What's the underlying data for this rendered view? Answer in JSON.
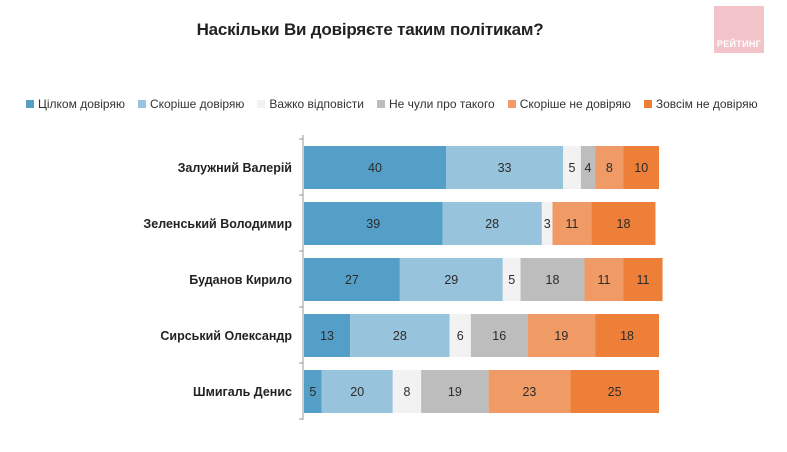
{
  "logo": {
    "text": "РЕЙТИНГ",
    "color": "#f2c3c8"
  },
  "chart_data": {
    "type": "bar",
    "orientation": "horizontal",
    "stacked": true,
    "title": "Наскільки Ви довіряєте таким політикам?",
    "xlabel": "",
    "ylabel": "",
    "xlim": [
      0,
      100
    ],
    "grid": false,
    "legend_position": "top",
    "categories": [
      "Залужний Валерій",
      "Зеленський Володимир",
      "Буданов Кирило",
      "Сирський Олександр",
      "Шмигаль Денис"
    ],
    "series": [
      {
        "name": "Цілком довіряю",
        "color": "#539fc7",
        "values": [
          40,
          39,
          27,
          13,
          5
        ]
      },
      {
        "name": "Скоріше довіряю",
        "color": "#97c3dc",
        "values": [
          33,
          28,
          29,
          28,
          20
        ]
      },
      {
        "name": "Важко відповісти",
        "color": "#f2f2f2",
        "values": [
          5,
          3,
          5,
          6,
          8
        ]
      },
      {
        "name": "Не чули про такого",
        "color": "#bdbdbd",
        "values": [
          4,
          0,
          18,
          16,
          19
        ]
      },
      {
        "name": "Скоріше не довіряю",
        "color": "#f09a66",
        "values": [
          8,
          11,
          11,
          19,
          23
        ]
      },
      {
        "name": "Зовсім не довіряю",
        "color": "#ee7f39",
        "values": [
          10,
          18,
          11,
          18,
          25
        ]
      }
    ]
  }
}
